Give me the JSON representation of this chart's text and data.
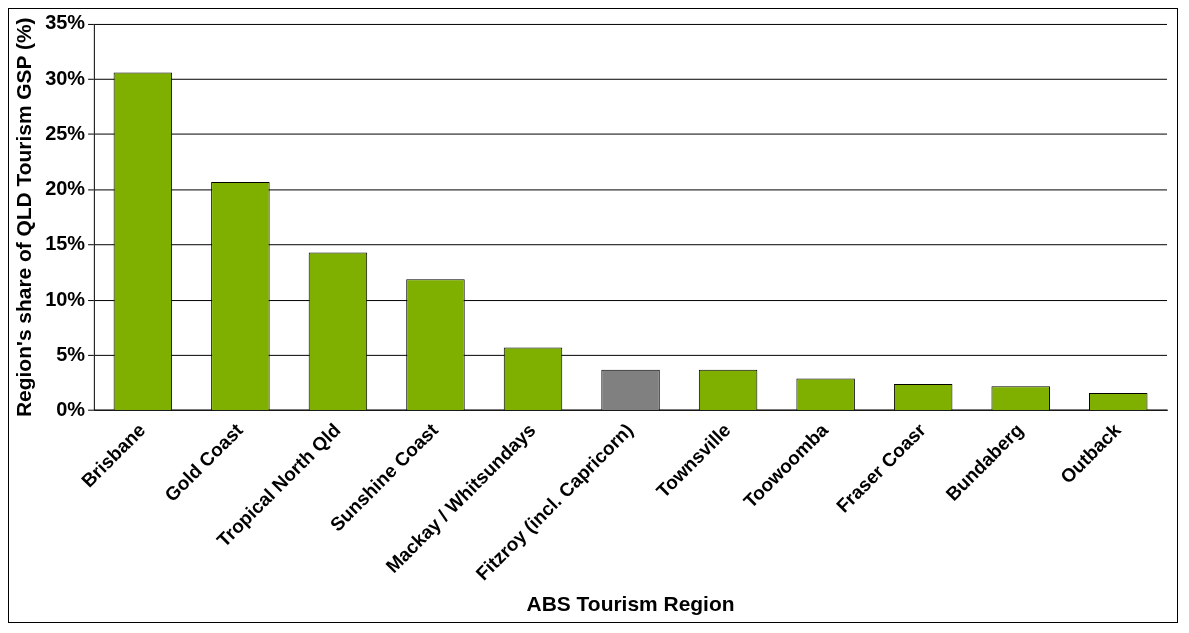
{
  "chart_data": {
    "type": "bar",
    "xlabel": "ABS Tourism Region",
    "ylabel": "Region's share of QLD Tourism GSP (%)",
    "categories": [
      "Brisbane",
      "Gold Coast",
      "Tropical North Qld",
      "Sunshine Coast",
      "Mackay / Whitsundays",
      "Fitzroy (incl. Capricorn)",
      "Townsville",
      "Toowoomba",
      "Fraser Coasr",
      "Bundaberg",
      "Outback"
    ],
    "values": [
      30.6,
      20.7,
      14.3,
      11.9,
      5.7,
      3.7,
      3.7,
      2.9,
      2.4,
      2.2,
      1.6
    ],
    "colors": [
      "#7fb000",
      "#7fb000",
      "#7fb000",
      "#7fb000",
      "#7fb000",
      "#808080",
      "#7fb000",
      "#7fb000",
      "#7fb000",
      "#7fb000",
      "#7fb000"
    ],
    "ylim": [
      0,
      35
    ],
    "yticks": [
      {
        "value": 0,
        "label": "0%"
      },
      {
        "value": 5,
        "label": "5%"
      },
      {
        "value": 10,
        "label": "10%"
      },
      {
        "value": 15,
        "label": "15%"
      },
      {
        "value": 20,
        "label": "20%"
      },
      {
        "value": 25,
        "label": "25%"
      },
      {
        "value": 30,
        "label": "30%"
      },
      {
        "value": 35,
        "label": "35%"
      }
    ],
    "grid": "y",
    "legend": false
  }
}
